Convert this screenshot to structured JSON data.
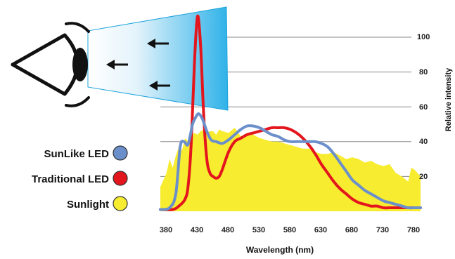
{
  "chart_data": {
    "type": "area",
    "title": "",
    "xlabel": "Wavelength (nm)",
    "ylabel": "Relative intensity",
    "xlim": [
      380,
      800
    ],
    "ylim": [
      0,
      110
    ],
    "x_ticks": [
      "380",
      "430",
      "480",
      "530",
      "580",
      "630",
      "680",
      "730",
      "780"
    ],
    "y_ticks": [
      "20",
      "40",
      "60",
      "80",
      "100"
    ],
    "grid": "horizontal",
    "legend_position": "left",
    "series": [
      {
        "name": "Sunlight",
        "color": "#f7ec2f",
        "style": "filled-area",
        "x": [
          380,
          385,
          390,
          395,
          400,
          405,
          410,
          415,
          420,
          425,
          430,
          435,
          440,
          445,
          450,
          455,
          460,
          465,
          470,
          475,
          480,
          490,
          500,
          510,
          520,
          530,
          540,
          550,
          560,
          570,
          580,
          590,
          600,
          610,
          620,
          630,
          640,
          650,
          660,
          670,
          680,
          690,
          700,
          710,
          720,
          730,
          740,
          750,
          760,
          770,
          780,
          785,
          790,
          795,
          800
        ],
        "values": [
          14,
          18,
          22,
          30,
          25,
          32,
          37,
          35,
          42,
          40,
          43,
          45,
          44,
          46,
          47,
          45,
          46,
          46,
          44,
          47,
          46,
          45,
          48,
          43,
          45,
          44,
          42,
          41,
          40,
          40,
          39,
          38,
          37,
          36,
          36,
          34,
          33,
          33,
          34,
          32,
          30,
          31,
          30,
          28,
          29,
          27,
          26,
          27,
          22,
          20,
          17,
          25,
          24,
          22,
          20
        ]
      },
      {
        "name": "Traditional LED",
        "color": "#e4161d",
        "style": "line",
        "x": [
          380,
          400,
          410,
          420,
          425,
          430,
          435,
          440,
          445,
          450,
          455,
          460,
          465,
          470,
          475,
          480,
          490,
          500,
          510,
          520,
          530,
          540,
          550,
          560,
          570,
          580,
          590,
          600,
          610,
          620,
          630,
          640,
          650,
          660,
          670,
          680,
          690,
          700,
          710,
          720,
          730,
          740,
          750,
          760,
          770,
          780,
          790,
          800
        ],
        "values": [
          1,
          1,
          3,
          7,
          15,
          40,
          85,
          112,
          95,
          55,
          30,
          22,
          20,
          19,
          20,
          24,
          34,
          40,
          42,
          44,
          45,
          46,
          47,
          48,
          48,
          48,
          47,
          45,
          42,
          38,
          33,
          27,
          22,
          17,
          13,
          10,
          7,
          5,
          4,
          3,
          3,
          2,
          2,
          2,
          2,
          2,
          2,
          2
        ]
      },
      {
        "name": "SunLike LED",
        "color": "#6b8fcb",
        "style": "line",
        "x": [
          380,
          395,
          405,
          412,
          418,
          424,
          428,
          432,
          437,
          442,
          448,
          455,
          462,
          470,
          480,
          490,
          500,
          510,
          520,
          530,
          540,
          550,
          560,
          570,
          580,
          590,
          600,
          610,
          620,
          630,
          640,
          650,
          660,
          670,
          680,
          690,
          700,
          710,
          720,
          730,
          740,
          750,
          760,
          770,
          780,
          790,
          800
        ],
        "values": [
          1,
          2,
          10,
          37,
          40,
          38,
          43,
          50,
          54,
          56,
          53,
          46,
          41,
          40,
          39,
          41,
          44,
          47,
          49,
          49,
          48,
          46,
          44,
          43,
          41,
          40,
          40,
          40,
          40,
          40,
          39,
          37,
          33,
          28,
          23,
          18,
          15,
          12,
          10,
          8,
          6,
          5,
          4,
          3,
          2,
          2,
          2
        ]
      }
    ]
  },
  "legend": [
    {
      "label": "SunLike LED",
      "color": "#6b8fcb"
    },
    {
      "label": "Traditional LED",
      "color": "#e4161d"
    },
    {
      "label": "Sunlight",
      "color": "#f7ec2f"
    }
  ]
}
